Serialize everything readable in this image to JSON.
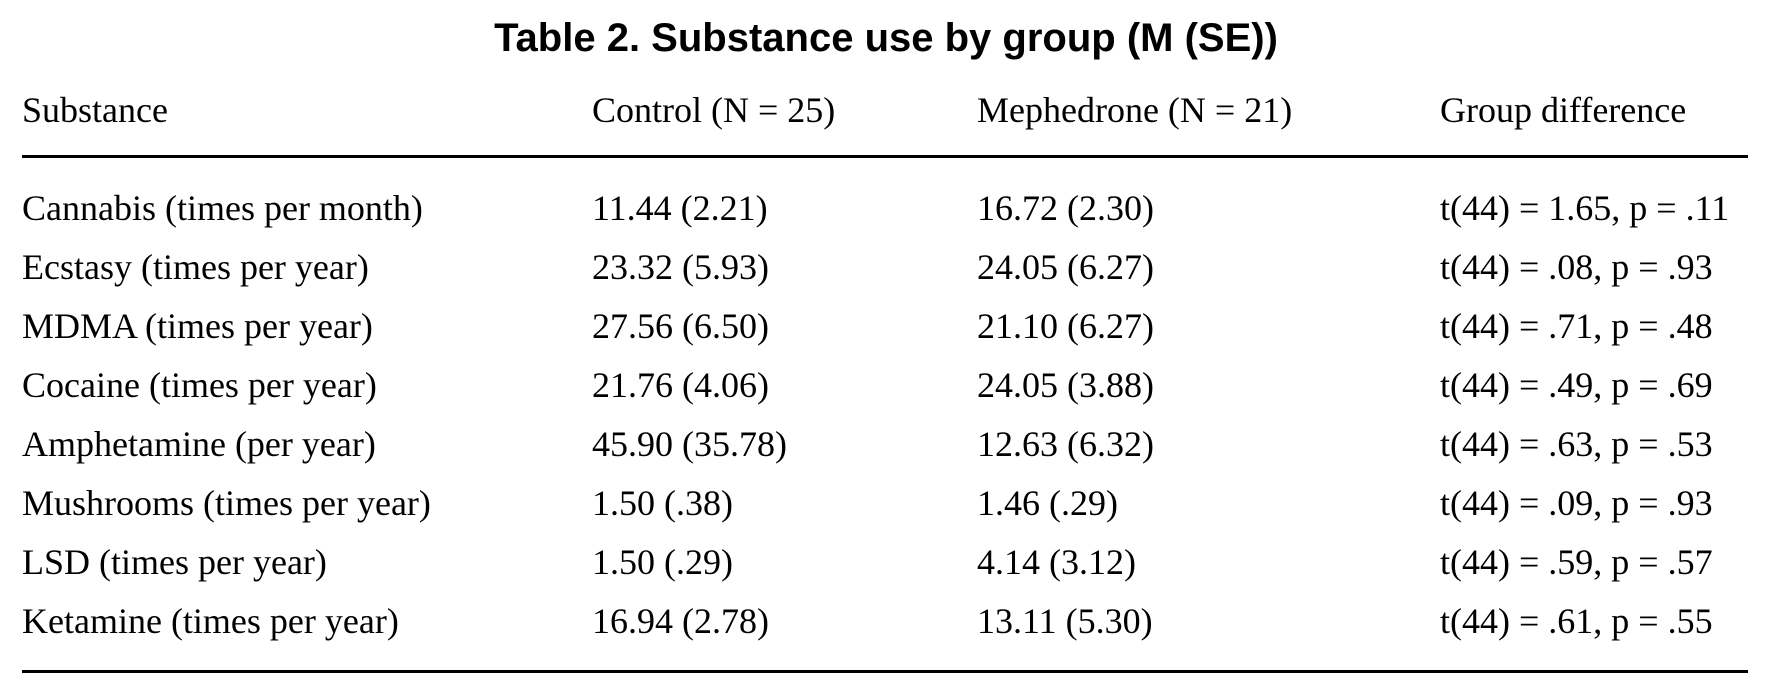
{
  "title": "Table 2. Substance use by group (M (SE))",
  "columns": {
    "substance": "Substance",
    "control": "Control (N = 25)",
    "mephedrone": "Mephedrone (N = 21)",
    "difference": "Group difference"
  },
  "rows": [
    {
      "substance": "Cannabis (times per month)",
      "control": "11.44 (2.21)",
      "mephedrone": "16.72 (2.30)",
      "difference": "t(44) = 1.65, p = .11"
    },
    {
      "substance": "Ecstasy (times per year)",
      "control": "23.32 (5.93)",
      "mephedrone": "24.05 (6.27)",
      "difference": "t(44) = .08, p = .93"
    },
    {
      "substance": "MDMA (times per year)",
      "control": "27.56 (6.50)",
      "mephedrone": "21.10 (6.27)",
      "difference": "t(44) = .71, p = .48"
    },
    {
      "substance": "Cocaine (times per year)",
      "control": "21.76 (4.06)",
      "mephedrone": "24.05 (3.88)",
      "difference": "t(44) = .49, p = .69"
    },
    {
      "substance": "Amphetamine (per year)",
      "control": "45.90 (35.78)",
      "mephedrone": "12.63 (6.32)",
      "difference": "t(44) = .63, p = .53"
    },
    {
      "substance": "Mushrooms (times per year)",
      "control": "1.50 (.38)",
      "mephedrone": "1.46 (.29)",
      "difference": "t(44) = .09, p = .93"
    },
    {
      "substance": "LSD (times per year)",
      "control": "1.50 (.29)",
      "mephedrone": "4.14 (3.12)",
      "difference": "t(44) = .59, p = .57"
    },
    {
      "substance": "Ketamine (times per year)",
      "control": "16.94 (2.78)",
      "mephedrone": "13.11 (5.30)",
      "difference": "t(44) = .61, p = .55"
    }
  ]
}
